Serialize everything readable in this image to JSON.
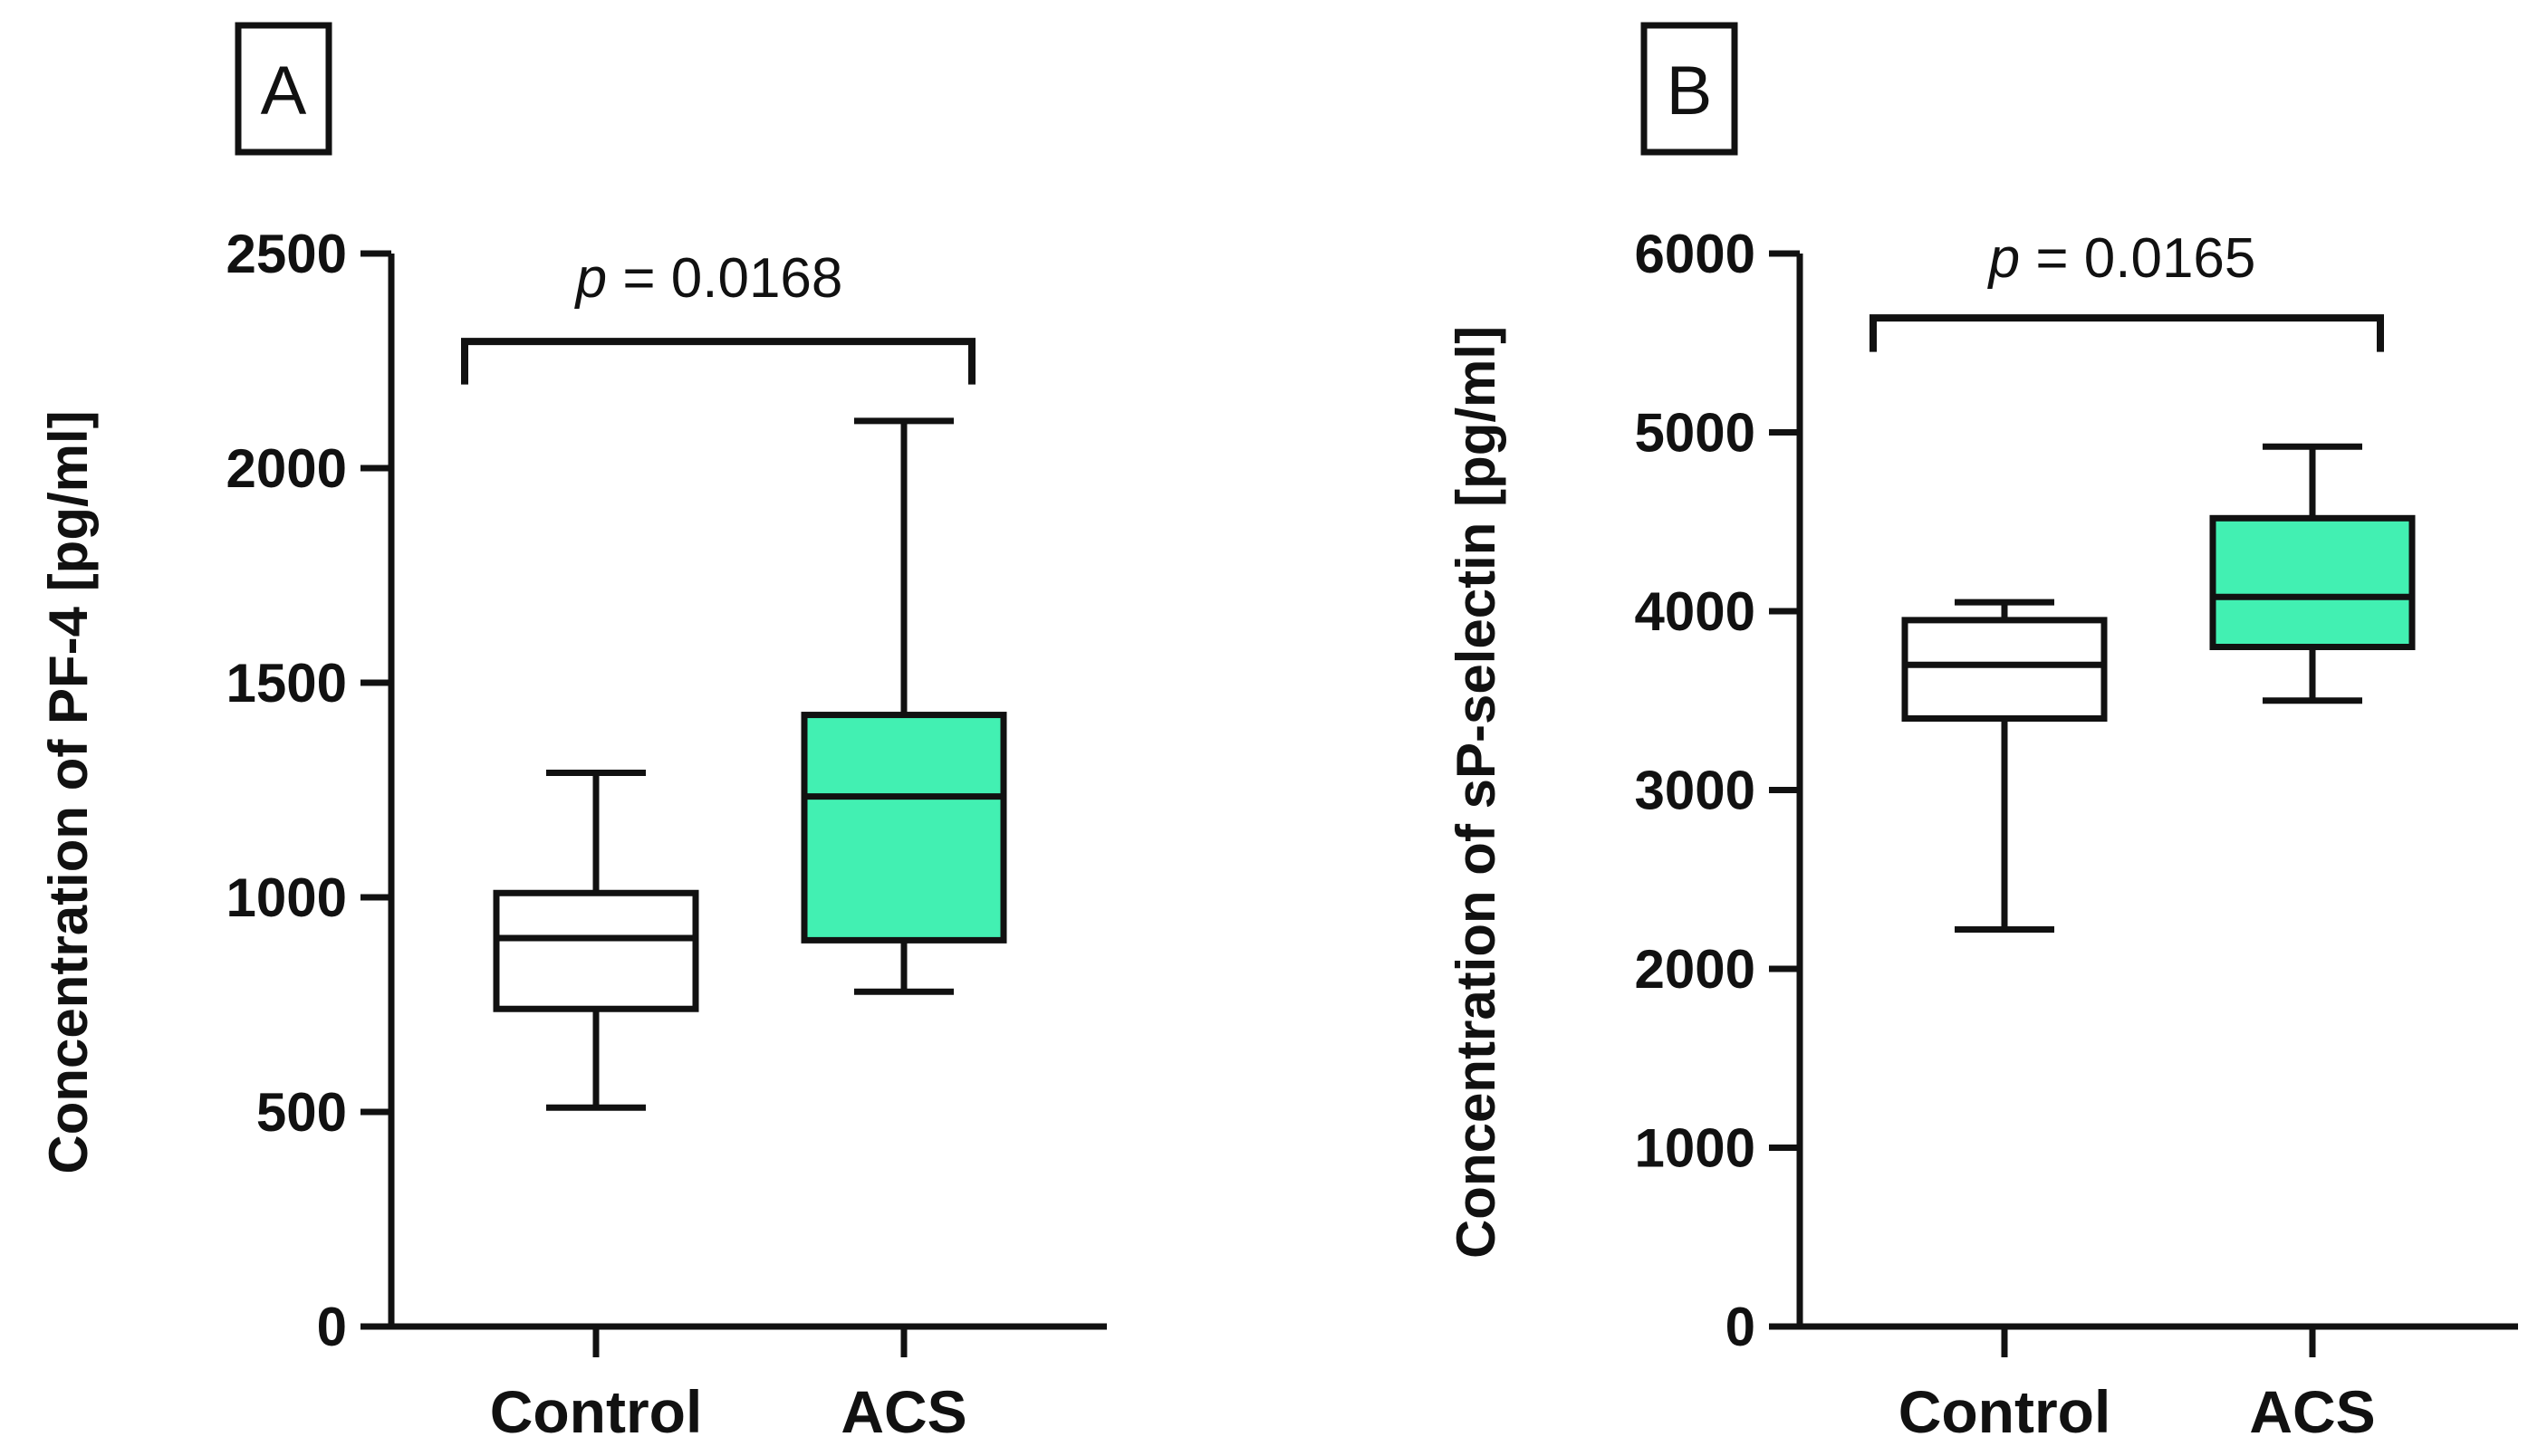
{
  "colors": {
    "stroke": "#111111",
    "control_fill": "#ffffff",
    "acs_fill": "#42f0b2"
  },
  "chart_data": [
    {
      "type": "box",
      "panel": "A",
      "ylabel": "Concentration of PF-4 [pg/ml]",
      "ylim": [
        0,
        2500
      ],
      "yticks": [
        0,
        500,
        1000,
        1500,
        2000,
        2500
      ],
      "ytick_labels": [
        "0",
        "500",
        "1000",
        "1500",
        "2000",
        "2500"
      ],
      "categories": [
        "Control",
        "ACS"
      ],
      "boxes": [
        {
          "name": "Control",
          "min": 510,
          "q1": 740,
          "median": 905,
          "q3": 1010,
          "max": 1290,
          "fill": "#ffffff"
        },
        {
          "name": "ACS",
          "min": 780,
          "q1": 900,
          "median": 1235,
          "q3": 1425,
          "max": 2110,
          "fill": "#42f0b2"
        }
      ],
      "bracket_y": 2295,
      "bracket_drop": 2195,
      "annotation": {
        "p_symbol": "p",
        "rest": " = 0.0168"
      }
    },
    {
      "type": "box",
      "panel": "B",
      "ylabel": "Concentration of sP-selectin [pg/ml]",
      "ylim": [
        0,
        6000
      ],
      "yticks": [
        0,
        1000,
        2000,
        3000,
        4000,
        5000,
        6000
      ],
      "ytick_labels": [
        "0",
        "1000",
        "2000",
        "3000",
        "4000",
        "5000",
        "6000"
      ],
      "categories": [
        "Control",
        "ACS"
      ],
      "boxes": [
        {
          "name": "Control",
          "min": 2220,
          "q1": 3400,
          "median": 3700,
          "q3": 3950,
          "max": 4050,
          "fill": "#ffffff"
        },
        {
          "name": "ACS",
          "min": 3500,
          "q1": 3800,
          "median": 4080,
          "q3": 4520,
          "max": 4920,
          "fill": "#42f0b2"
        }
      ],
      "bracket_y": 5640,
      "bracket_drop": 5450,
      "annotation": {
        "p_symbol": "p",
        "rest": " = 0.0165"
      }
    }
  ]
}
